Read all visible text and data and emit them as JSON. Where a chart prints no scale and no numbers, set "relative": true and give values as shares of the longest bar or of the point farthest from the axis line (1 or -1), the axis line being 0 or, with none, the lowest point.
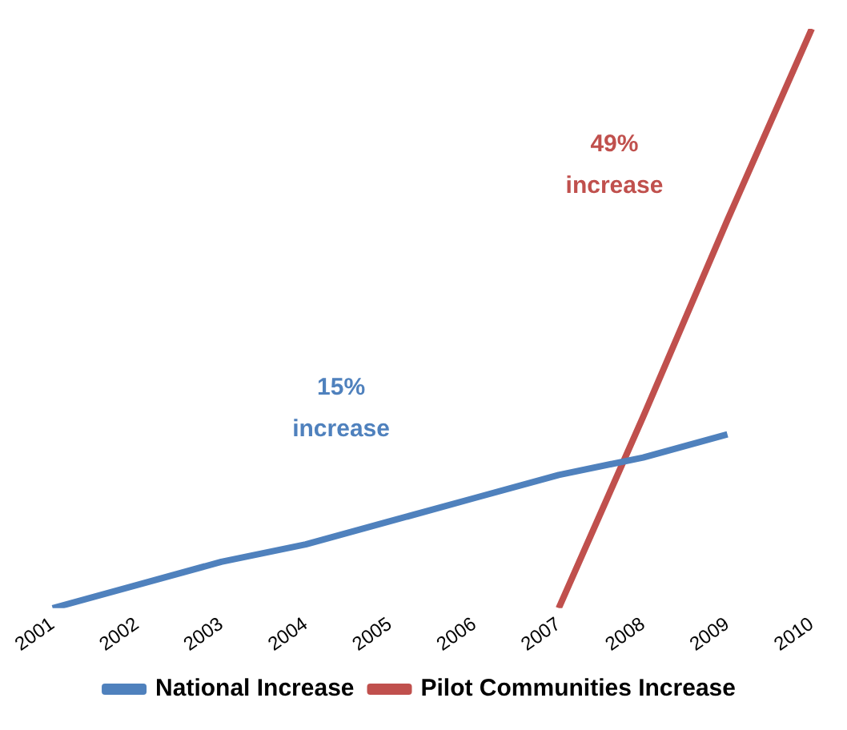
{
  "chart_data": {
    "type": "line",
    "relative": true,
    "categories": [
      "2001",
      "2002",
      "2003",
      "2004",
      "2005",
      "2006",
      "2007",
      "2008",
      "2009",
      "2010"
    ],
    "series": [
      {
        "name": "National Increase",
        "color": "#4f81bd",
        "values": [
          0,
          0.04,
          0.08,
          0.11,
          0.15,
          0.19,
          0.23,
          0.26,
          0.3,
          null
        ]
      },
      {
        "name": "Pilot Communities Increase",
        "color": "#c0504d",
        "values": [
          null,
          null,
          null,
          null,
          null,
          null,
          0,
          0.33,
          0.67,
          1
        ]
      }
    ],
    "annotations": [
      "15%\nincrease",
      "49%\nincrease"
    ],
    "legend": "bottom",
    "grid": false,
    "marker": "none",
    "line_style": "solid",
    "tick_labels": "x"
  }
}
